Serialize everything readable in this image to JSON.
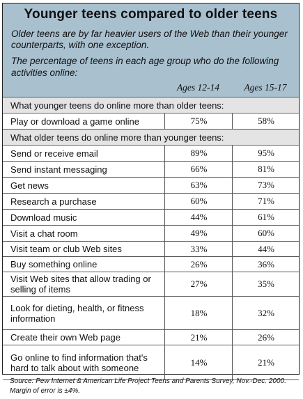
{
  "chart_data": {
    "type": "table",
    "title": "Younger teens compared to older teens",
    "subtitle": "Older teens are by far heavier users of the Web than their younger counterparts, with one exception.",
    "description": "The percentage of teens in each age group who do the following activities online:",
    "columns": [
      "Ages 12-14",
      "Ages 15-17"
    ],
    "sections": [
      {
        "heading": "What younger teens do online more than older teens:",
        "rows": [
          {
            "label": "Play or download a game online",
            "v1": "75%",
            "v2": "58%"
          }
        ]
      },
      {
        "heading": "What older teens do online more than younger teens:",
        "rows": [
          {
            "label": "Send or receive email",
            "v1": "89%",
            "v2": "95%"
          },
          {
            "label": "Send instant messaging",
            "v1": "66%",
            "v2": "81%"
          },
          {
            "label": "Get news",
            "v1": "63%",
            "v2": "73%"
          },
          {
            "label": "Research a purchase",
            "v1": "60%",
            "v2": "71%"
          },
          {
            "label": "Download music",
            "v1": "44%",
            "v2": "61%"
          },
          {
            "label": "Visit a chat room",
            "v1": "49%",
            "v2": "60%"
          },
          {
            "label": "Visit team or club Web sites",
            "v1": "33%",
            "v2": "44%"
          },
          {
            "label": "Buy something online",
            "v1": "26%",
            "v2": "36%"
          },
          {
            "label": "Visit Web sites that allow trading or selling of items",
            "v1": "27%",
            "v2": "35%"
          },
          {
            "label": "Look for dieting, health, or fitness information",
            "v1": "18%",
            "v2": "32%"
          },
          {
            "label": "Create their own Web page",
            "v1": "21%",
            "v2": "26%"
          },
          {
            "label": "Go online to find information that's hard to talk about with someone",
            "v1": "14%",
            "v2": "21%"
          }
        ]
      }
    ],
    "source": "Source: Pew Internet & American Life Project Teens and Parents Survey, Nov.-Dec. 2000. Margin of error is ±4%."
  }
}
